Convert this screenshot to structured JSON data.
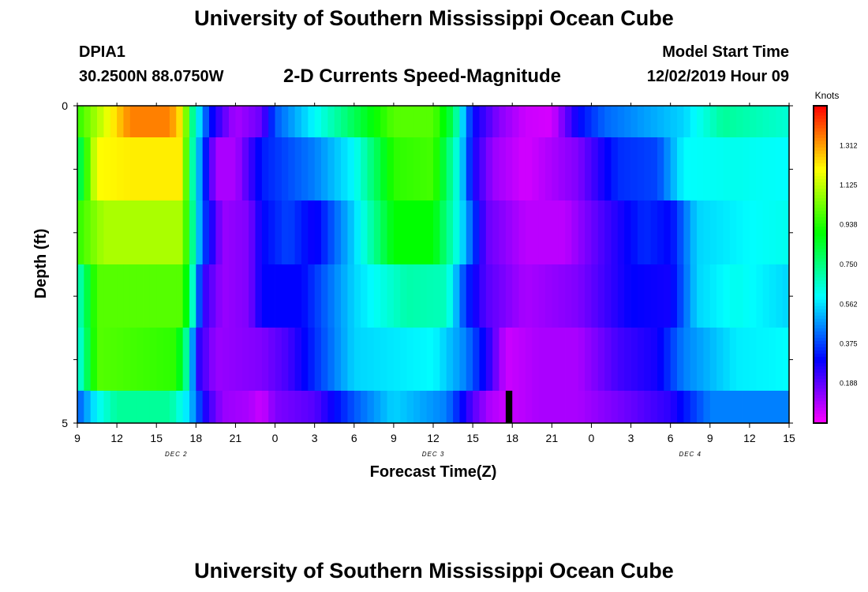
{
  "header": {
    "title": "University of Southern Mississippi Ocean Cube",
    "station_id": "DPIA1",
    "station_location": "30.2500N 88.0750W",
    "model_start_label": "Model Start Time",
    "model_start_value": "12/02/2019 Hour 09"
  },
  "footer": {
    "title": "University of Southern Mississippi Ocean Cube"
  },
  "chart_data": {
    "type": "heatmap",
    "title": "2-D Currents Speed-Magnitude",
    "xlabel": "Forecast Time(Z)",
    "ylabel": "Depth (ft)",
    "x_tick_labels": [
      "9",
      "12",
      "15",
      "18",
      "21",
      "0",
      "3",
      "6",
      "9",
      "12",
      "15",
      "18",
      "21",
      "0",
      "3",
      "6",
      "9",
      "12",
      "15"
    ],
    "x_range_hours": [
      0,
      54
    ],
    "y_tick_labels": [
      "0",
      "5"
    ],
    "y_range": [
      0,
      5
    ],
    "date_labels": [
      {
        "text": "DEC 2",
        "hour": 7.5
      },
      {
        "text": "DEC 3",
        "hour": 27
      },
      {
        "text": "DEC 4",
        "hour": 46.5
      }
    ],
    "colorbar": {
      "unit": "Knots",
      "min": 0.0,
      "max": 1.5,
      "tick_labels": [
        "0.188",
        "0.375",
        "0.562",
        "0.750",
        "0.938",
        "1.125",
        "1.312"
      ],
      "tick_values": [
        0.188,
        0.375,
        0.562,
        0.75,
        0.938,
        1.125,
        1.312
      ]
    },
    "rows": [
      {
        "depth": "surface",
        "key": [
          [
            0,
            0.95
          ],
          [
            2,
            1.15
          ],
          [
            4,
            1.35
          ],
          [
            7,
            1.35
          ],
          [
            8,
            1.2
          ],
          [
            8.8,
            0.7
          ],
          [
            10,
            0.33
          ],
          [
            11,
            0.2
          ],
          [
            12,
            0.1
          ],
          [
            14,
            0.18
          ],
          [
            15,
            0.4
          ],
          [
            18,
            0.6
          ],
          [
            21,
            0.8
          ],
          [
            24,
            1.0
          ],
          [
            27,
            1.0
          ],
          [
            28.5,
            0.8
          ],
          [
            30,
            0.3
          ],
          [
            32,
            0.14
          ],
          [
            34,
            0.06
          ],
          [
            36,
            0.05
          ],
          [
            38,
            0.3
          ],
          [
            40,
            0.42
          ],
          [
            46,
            0.55
          ],
          [
            49,
            0.72
          ],
          [
            54,
            0.65
          ]
        ]
      },
      {
        "depth": "1 ft",
        "key": [
          [
            0,
            0.75
          ],
          [
            1.5,
            1.2
          ],
          [
            4,
            1.22
          ],
          [
            8,
            1.22
          ],
          [
            8.5,
            0.8
          ],
          [
            9.5,
            0.4
          ],
          [
            10.5,
            0.1
          ],
          [
            12,
            0.1
          ],
          [
            14,
            0.33
          ],
          [
            18,
            0.45
          ],
          [
            21,
            0.6
          ],
          [
            24,
            0.95
          ],
          [
            27,
            0.98
          ],
          [
            29,
            0.6
          ],
          [
            30,
            0.28
          ],
          [
            31.5,
            0.12
          ],
          [
            34,
            0.05
          ],
          [
            38,
            0.15
          ],
          [
            41,
            0.35
          ],
          [
            44,
            0.38
          ],
          [
            46,
            0.6
          ],
          [
            50,
            0.62
          ],
          [
            54,
            0.6
          ]
        ]
      },
      {
        "depth": "2 ft",
        "key": [
          [
            0,
            0.95
          ],
          [
            2,
            1.1
          ],
          [
            8,
            1.1
          ],
          [
            8.6,
            0.8
          ],
          [
            9.5,
            0.4
          ],
          [
            11,
            0.12
          ],
          [
            13,
            0.15
          ],
          [
            14,
            0.3
          ],
          [
            16,
            0.38
          ],
          [
            18,
            0.28
          ],
          [
            21,
            0.55
          ],
          [
            24,
            0.9
          ],
          [
            27,
            0.9
          ],
          [
            29,
            0.6
          ],
          [
            31,
            0.18
          ],
          [
            34,
            0.08
          ],
          [
            37,
            0.08
          ],
          [
            40,
            0.22
          ],
          [
            43,
            0.35
          ],
          [
            45,
            0.3
          ],
          [
            47,
            0.55
          ],
          [
            51,
            0.6
          ],
          [
            54,
            0.62
          ]
        ]
      },
      {
        "depth": "3 ft",
        "key": [
          [
            0,
            0.65
          ],
          [
            1.5,
            1.0
          ],
          [
            8,
            1.0
          ],
          [
            8.6,
            0.75
          ],
          [
            9.5,
            0.25
          ],
          [
            11,
            0.12
          ],
          [
            13,
            0.15
          ],
          [
            14,
            0.3
          ],
          [
            17,
            0.3
          ],
          [
            21,
            0.55
          ],
          [
            25,
            0.7
          ],
          [
            28,
            0.68
          ],
          [
            29.5,
            0.35
          ],
          [
            31,
            0.2
          ],
          [
            34,
            0.1
          ],
          [
            38,
            0.15
          ],
          [
            42,
            0.3
          ],
          [
            45,
            0.28
          ],
          [
            47,
            0.55
          ],
          [
            50,
            0.62
          ],
          [
            54,
            0.55
          ]
        ]
      },
      {
        "depth": "4 ft",
        "key": [
          [
            0,
            0.6
          ],
          [
            1.5,
            1.0
          ],
          [
            7.5,
            0.95
          ],
          [
            8.2,
            0.75
          ],
          [
            9.2,
            0.25
          ],
          [
            10.5,
            0.12
          ],
          [
            14,
            0.15
          ],
          [
            16,
            0.22
          ],
          [
            18,
            0.35
          ],
          [
            21,
            0.55
          ],
          [
            27,
            0.6
          ],
          [
            29.5,
            0.45
          ],
          [
            31.2,
            0.25
          ],
          [
            32.5,
            0.06
          ],
          [
            35,
            0.1
          ],
          [
            38,
            0.1
          ],
          [
            41,
            0.22
          ],
          [
            44,
            0.28
          ],
          [
            46,
            0.45
          ],
          [
            50,
            0.58
          ],
          [
            54,
            0.6
          ]
        ]
      },
      {
        "depth": "5 ft",
        "key": [
          [
            0,
            0.4
          ],
          [
            1.5,
            0.6
          ],
          [
            3,
            0.72
          ],
          [
            7,
            0.72
          ],
          [
            8.5,
            0.55
          ],
          [
            9.8,
            0.25
          ],
          [
            11,
            0.12
          ],
          [
            13,
            0.1
          ],
          [
            14,
            0.06
          ],
          [
            15,
            0.15
          ],
          [
            18,
            0.2
          ],
          [
            21,
            0.4
          ],
          [
            24,
            0.55
          ],
          [
            28,
            0.45
          ],
          [
            30,
            0.2
          ],
          [
            31.2,
            0.1
          ],
          [
            32.5,
            0.06
          ],
          [
            35,
            0.1
          ],
          [
            38,
            0.1
          ],
          [
            42,
            0.18
          ],
          [
            45,
            0.25
          ],
          [
            48,
            0.45
          ],
          [
            54,
            0.45
          ]
        ]
      }
    ],
    "missing_cells": [
      {
        "row": 5,
        "hour_start": 32.5,
        "hour_end": 33.0
      }
    ]
  }
}
